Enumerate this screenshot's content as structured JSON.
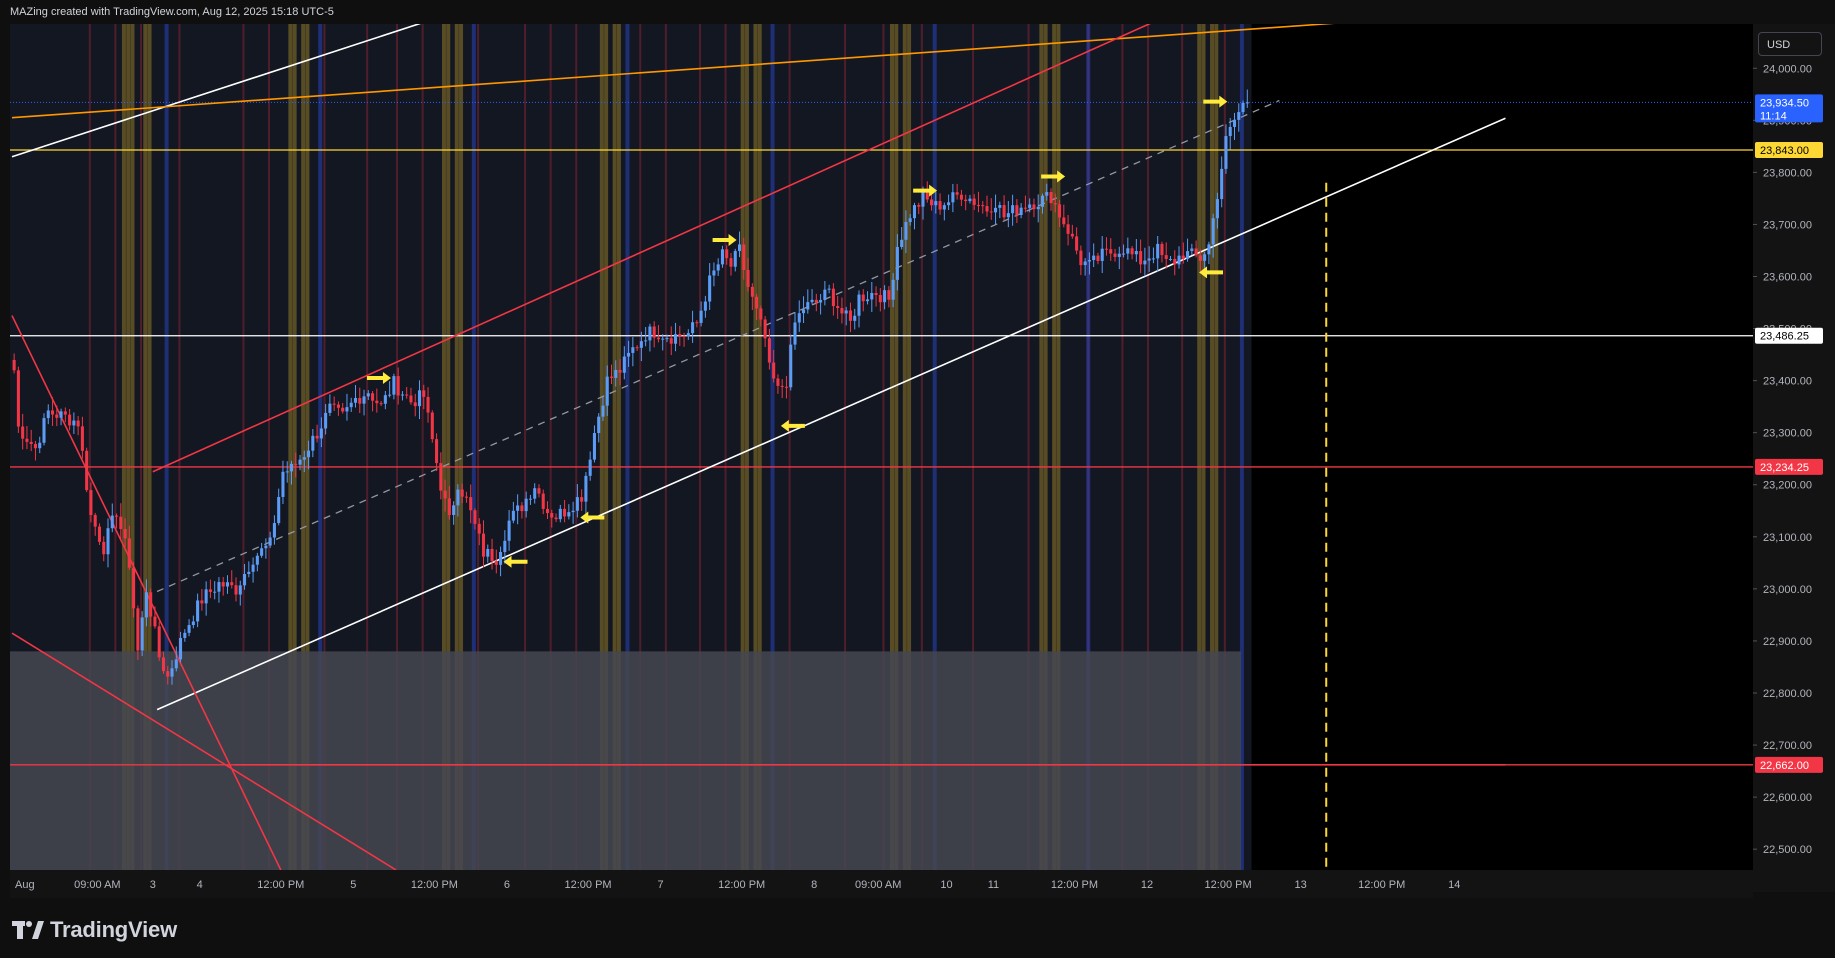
{
  "header": {
    "title": "MAZing created with TradingView.com, Aug 12, 2025 15:18 UTC-5"
  },
  "brand": {
    "name": "TradingView"
  },
  "price_axis": {
    "currency": "USD",
    "ticks": [
      "24,000.00",
      "23,900.00",
      "23,800.00",
      "23,700.00",
      "23,600.00",
      "23,500.00",
      "23,400.00",
      "23,300.00",
      "23,200.00",
      "23,100.00",
      "23,000.00",
      "22,900.00",
      "22,800.00",
      "22,700.00",
      "22,600.00",
      "22,500.00"
    ],
    "badges": [
      {
        "name": "last-price",
        "price": 23934.5,
        "label": "23,934.50",
        "sublabel": "11:14",
        "color": "#2962ff",
        "text_color": "#ffffff"
      },
      {
        "name": "level-23843",
        "price": 23843.0,
        "label": "23,843.00",
        "color": "#fdd835",
        "text_color": "#000000"
      },
      {
        "name": "level-23486",
        "price": 23486.25,
        "label": "23,486.25",
        "color": "#ffffff",
        "text_color": "#000000"
      },
      {
        "name": "level-23234",
        "price": 23234.25,
        "label": "23,234.25",
        "color": "#f23645",
        "text_color": "#ffffff"
      },
      {
        "name": "level-22662",
        "price": 22662.0,
        "label": "22,662.00",
        "color": "#f23645",
        "text_color": "#ffffff"
      }
    ]
  },
  "time_axis": {
    "labels": [
      {
        "label": "Aug",
        "bar": 3
      },
      {
        "label": "09:00 AM",
        "bar": 20
      },
      {
        "label": "3",
        "bar": 33
      },
      {
        "label": "4",
        "bar": 44
      },
      {
        "label": "12:00 PM",
        "bar": 63
      },
      {
        "label": "5",
        "bar": 80
      },
      {
        "label": "12:00 PM",
        "bar": 99
      },
      {
        "label": "6",
        "bar": 116
      },
      {
        "label": "12:00 PM",
        "bar": 135
      },
      {
        "label": "7",
        "bar": 152
      },
      {
        "label": "12:00 PM",
        "bar": 171
      },
      {
        "label": "8",
        "bar": 188
      },
      {
        "label": "09:00 AM",
        "bar": 203
      },
      {
        "label": "10",
        "bar": 219
      },
      {
        "label": "11",
        "bar": 230
      },
      {
        "label": "12:00 PM",
        "bar": 249
      },
      {
        "label": "12",
        "bar": 266
      },
      {
        "label": "12:00 PM",
        "bar": 285
      },
      {
        "label": "13",
        "bar": 302
      },
      {
        "label": "12:00 PM",
        "bar": 321
      },
      {
        "label": "14",
        "bar": 338
      }
    ]
  },
  "colors": {
    "background": "#131722",
    "up": "#5b9cf6",
    "down": "#f23645",
    "shade": "#454650",
    "grid_red": "#9b2536",
    "grid_yellow": "#c9a227",
    "grid_blue": "#2948c8",
    "arrow": "#ffeb3b"
  },
  "chart_data": {
    "type": "candlestick",
    "symbol": "",
    "ylim": [
      22460,
      24085
    ],
    "xlim": [
      0,
      350
    ],
    "last_price": 23934.5,
    "countdown": "11:14",
    "horizontal_levels": [
      {
        "price": 23843.0,
        "color": "#fdd835"
      },
      {
        "price": 23486.25,
        "color": "#ffffff"
      },
      {
        "price": 23234.25,
        "color": "#f23645"
      },
      {
        "price": 22662.0,
        "color": "#f23645"
      },
      {
        "price": 23934.5,
        "color": "#2962ff",
        "style": "dotted"
      }
    ],
    "shaded_zone": {
      "from": 22460,
      "to": 22880,
      "bar_end": 288
    },
    "trendlines": [
      {
        "name": "upper-white",
        "x1": 0,
        "y1": 23830,
        "x2": 102,
        "y2": 24103,
        "color": "#ffffff"
      },
      {
        "name": "orange",
        "x1": 0,
        "y1": 23905,
        "x2": 350,
        "y2": 24110,
        "color": "#ff9800"
      },
      {
        "name": "red-upper-channel",
        "x1": 33,
        "y1": 23225,
        "x2": 270,
        "y2": 24098,
        "color": "#f23645"
      },
      {
        "name": "white-support",
        "x1": 34,
        "y1": 22768,
        "x2": 350,
        "y2": 23904,
        "color": "#ffffff"
      },
      {
        "name": "dashed-midline",
        "x1": 34,
        "y1": 22995,
        "x2": 297,
        "y2": 23938,
        "color": "#9598a1",
        "dash": true
      },
      {
        "name": "red-descending",
        "x1": 0,
        "y1": 23525,
        "x2": 63,
        "y2": 22460,
        "color": "#f23645"
      },
      {
        "name": "red-descending-low",
        "x1": 0,
        "y1": 22915,
        "x2": 90,
        "y2": 22460,
        "color": "#f23645"
      },
      {
        "name": "red-support-horizontal",
        "x1": 52,
        "y1": 22662,
        "x2": 350,
        "y2": 22662,
        "color": "#f23645"
      }
    ],
    "future_marker": {
      "bar": 308,
      "color": "#fdd835"
    },
    "arrows": [
      {
        "bar": 86,
        "price": 23405,
        "dir": "right"
      },
      {
        "bar": 118,
        "price": 23052,
        "dir": "left"
      },
      {
        "bar": 136,
        "price": 23137,
        "dir": "left"
      },
      {
        "bar": 167,
        "price": 23670,
        "dir": "right"
      },
      {
        "bar": 183,
        "price": 23313,
        "dir": "left"
      },
      {
        "bar": 214,
        "price": 23765,
        "dir": "right"
      },
      {
        "bar": 244,
        "price": 23792,
        "dir": "right"
      },
      {
        "bar": 281,
        "price": 23608,
        "dir": "left"
      },
      {
        "bar": 282,
        "price": 23936,
        "dir": "right"
      }
    ],
    "session_bars": {
      "yellow": [
        26,
        27,
        28,
        31,
        32,
        65,
        66,
        68,
        69,
        101,
        102,
        104,
        105,
        138,
        139,
        141,
        142,
        171,
        172,
        174,
        175,
        206,
        207,
        209,
        210,
        241,
        242,
        244,
        245,
        278,
        279,
        281,
        282
      ],
      "blue": [
        36,
        72,
        108,
        144,
        178,
        216,
        252,
        288
      ],
      "red": [
        18,
        24,
        30,
        39,
        54,
        60,
        73,
        83,
        90,
        96,
        109,
        120,
        126,
        132,
        147,
        153,
        161,
        167,
        182,
        195,
        204,
        213,
        225,
        238,
        252,
        260,
        266,
        274,
        284
      ]
    },
    "anchors": [
      [
        0,
        23420
      ],
      [
        1,
        23310
      ],
      [
        5,
        23270
      ],
      [
        8,
        23340
      ],
      [
        12,
        23330
      ],
      [
        15,
        23320
      ],
      [
        18,
        23140
      ],
      [
        21,
        23080
      ],
      [
        24,
        23150
      ],
      [
        27,
        23050
      ],
      [
        29,
        22880
      ],
      [
        31,
        23000
      ],
      [
        34,
        22870
      ],
      [
        36,
        22830
      ],
      [
        40,
        22920
      ],
      [
        44,
        22980
      ],
      [
        48,
        23010
      ],
      [
        52,
        23000
      ],
      [
        56,
        23060
      ],
      [
        60,
        23085
      ],
      [
        63,
        23225
      ],
      [
        65,
        23230
      ],
      [
        68,
        23260
      ],
      [
        71,
        23300
      ],
      [
        74,
        23345
      ],
      [
        77,
        23330
      ],
      [
        80,
        23365
      ],
      [
        83,
        23380
      ],
      [
        86,
        23350
      ],
      [
        89,
        23395
      ],
      [
        93,
        23360
      ],
      [
        96,
        23370
      ],
      [
        100,
        23200
      ],
      [
        102,
        23130
      ],
      [
        104,
        23205
      ],
      [
        106,
        23170
      ],
      [
        108,
        23120
      ],
      [
        110,
        23070
      ],
      [
        113,
        23060
      ],
      [
        116,
        23130
      ],
      [
        119,
        23160
      ],
      [
        122,
        23200
      ],
      [
        125,
        23150
      ],
      [
        127,
        23140
      ],
      [
        129,
        23150
      ],
      [
        133,
        23180
      ],
      [
        136,
        23300
      ],
      [
        139,
        23400
      ],
      [
        142,
        23420
      ],
      [
        145,
        23460
      ],
      [
        148,
        23490
      ],
      [
        150,
        23495
      ],
      [
        154,
        23485
      ],
      [
        158,
        23490
      ],
      [
        160,
        23510
      ],
      [
        163,
        23590
      ],
      [
        166,
        23640
      ],
      [
        168,
        23620
      ],
      [
        170,
        23650
      ],
      [
        172,
        23580
      ],
      [
        174,
        23530
      ],
      [
        176,
        23480
      ],
      [
        177,
        23420
      ],
      [
        179,
        23380
      ],
      [
        181,
        23400
      ],
      [
        183,
        23510
      ],
      [
        185,
        23540
      ],
      [
        188,
        23550
      ],
      [
        191,
        23570
      ],
      [
        194,
        23530
      ],
      [
        196,
        23510
      ],
      [
        198,
        23560
      ],
      [
        202,
        23570
      ],
      [
        205,
        23555
      ],
      [
        207,
        23660
      ],
      [
        210,
        23720
      ],
      [
        213,
        23750
      ],
      [
        216,
        23735
      ],
      [
        219,
        23745
      ],
      [
        222,
        23760
      ],
      [
        225,
        23745
      ],
      [
        228,
        23730
      ],
      [
        230,
        23745
      ],
      [
        232,
        23715
      ],
      [
        234,
        23725
      ],
      [
        237,
        23740
      ],
      [
        240,
        23745
      ],
      [
        243,
        23755
      ],
      [
        245,
        23720
      ],
      [
        247,
        23690
      ],
      [
        250,
        23630
      ],
      [
        252,
        23620
      ],
      [
        255,
        23640
      ],
      [
        258,
        23650
      ],
      [
        260,
        23655
      ],
      [
        262,
        23640
      ],
      [
        264,
        23630
      ],
      [
        266,
        23640
      ],
      [
        268,
        23650
      ],
      [
        270,
        23625
      ],
      [
        272,
        23630
      ],
      [
        274,
        23645
      ],
      [
        276,
        23640
      ],
      [
        278,
        23635
      ],
      [
        280,
        23660
      ],
      [
        282,
        23760
      ],
      [
        284,
        23860
      ],
      [
        286,
        23900
      ],
      [
        288,
        23930
      ],
      [
        289,
        23934.5
      ]
    ]
  }
}
